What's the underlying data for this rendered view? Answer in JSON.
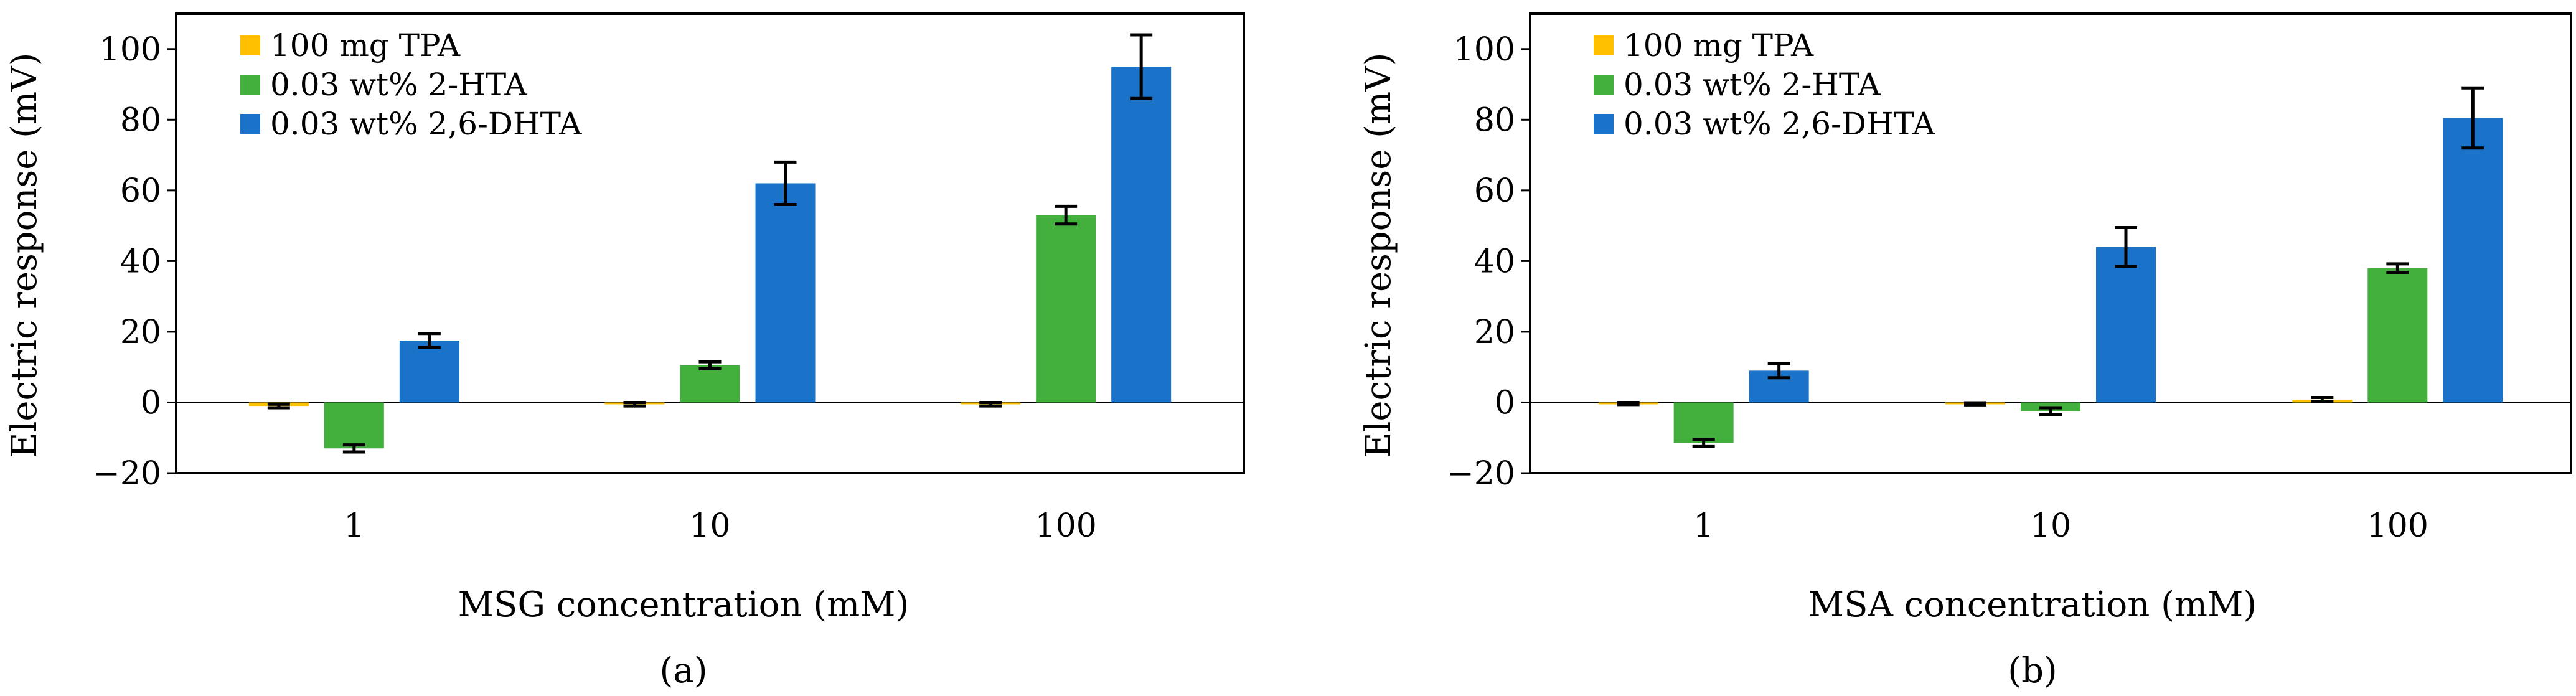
{
  "chart_data": [
    {
      "type": "bar",
      "panel_label": "(a)",
      "xlabel": "MSG concentration (mM)",
      "ylabel": "Electric response (mV)",
      "ylim": [
        -20,
        110
      ],
      "yticks": [
        -20,
        0,
        20,
        40,
        60,
        80,
        100
      ],
      "categories": [
        "1",
        "10",
        "100"
      ],
      "legend_position": "top-left",
      "series": [
        {
          "name": "100 mg TPA",
          "color": "#FFC000",
          "values": [
            -1,
            -0.5,
            -0.5
          ],
          "errors": [
            0.5,
            0.5,
            0.5
          ]
        },
        {
          "name": "0.03 wt% 2-HTA",
          "color": "#43B03D",
          "values": [
            -13,
            10.5,
            53
          ],
          "errors": [
            1,
            1,
            2.5
          ]
        },
        {
          "name": "0.03 wt% 2,6-DHTA",
          "color": "#1A73C8",
          "values": [
            17.5,
            62,
            95
          ],
          "errors": [
            2,
            6,
            9
          ]
        }
      ]
    },
    {
      "type": "bar",
      "panel_label": "(b)",
      "xlabel": "MSA concentration (mM)",
      "ylabel": "Electric response (mV)",
      "ylim": [
        -20,
        110
      ],
      "yticks": [
        -20,
        0,
        20,
        40,
        60,
        80,
        100
      ],
      "categories": [
        "1",
        "10",
        "100"
      ],
      "legend_position": "top-left",
      "series": [
        {
          "name": "100 mg TPA",
          "color": "#FFC000",
          "values": [
            -0.3,
            -0.4,
            0.8
          ],
          "errors": [
            0.3,
            0.3,
            0.6
          ]
        },
        {
          "name": "0.03 wt% 2-HTA",
          "color": "#43B03D",
          "values": [
            -11.5,
            -2.5,
            38
          ],
          "errors": [
            1,
            1,
            1.2
          ]
        },
        {
          "name": "0.03 wt% 2,6-DHTA",
          "color": "#1A73C8",
          "values": [
            9,
            44,
            80.5
          ],
          "errors": [
            2,
            5.5,
            8.5
          ]
        }
      ]
    }
  ]
}
